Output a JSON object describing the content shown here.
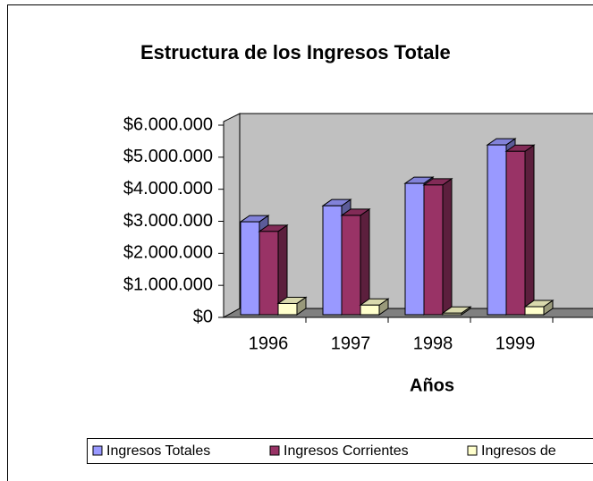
{
  "chart_data": {
    "type": "bar3d",
    "title": "Estructura de los Ingresos Totale",
    "x_label": "Años",
    "categories": [
      "1996",
      "1997",
      "1998",
      "1999"
    ],
    "series": [
      {
        "name": "Ingresos Totales",
        "color": "#9999ff",
        "values": [
          2900000,
          3400000,
          4100000,
          5300000
        ]
      },
      {
        "name": "Ingresos Corrientes",
        "color": "#993366",
        "values": [
          2600000,
          3100000,
          4050000,
          5100000
        ]
      },
      {
        "name": "Ingresos de",
        "color": "#ffffcc",
        "values": [
          350000,
          300000,
          50000,
          250000
        ]
      }
    ],
    "ylim": [
      0,
      6000000
    ],
    "yticks": [
      {
        "value": 0,
        "label": "$0"
      },
      {
        "value": 1000000,
        "label": "$1.000.000"
      },
      {
        "value": 2000000,
        "label": "$2.000.000"
      },
      {
        "value": 3000000,
        "label": "$3.000.000"
      },
      {
        "value": 4000000,
        "label": "$4.000.000"
      },
      {
        "value": 5000000,
        "label": "$5.000.000"
      },
      {
        "value": 6000000,
        "label": "$6.000.000"
      }
    ],
    "legend": "bottom"
  }
}
